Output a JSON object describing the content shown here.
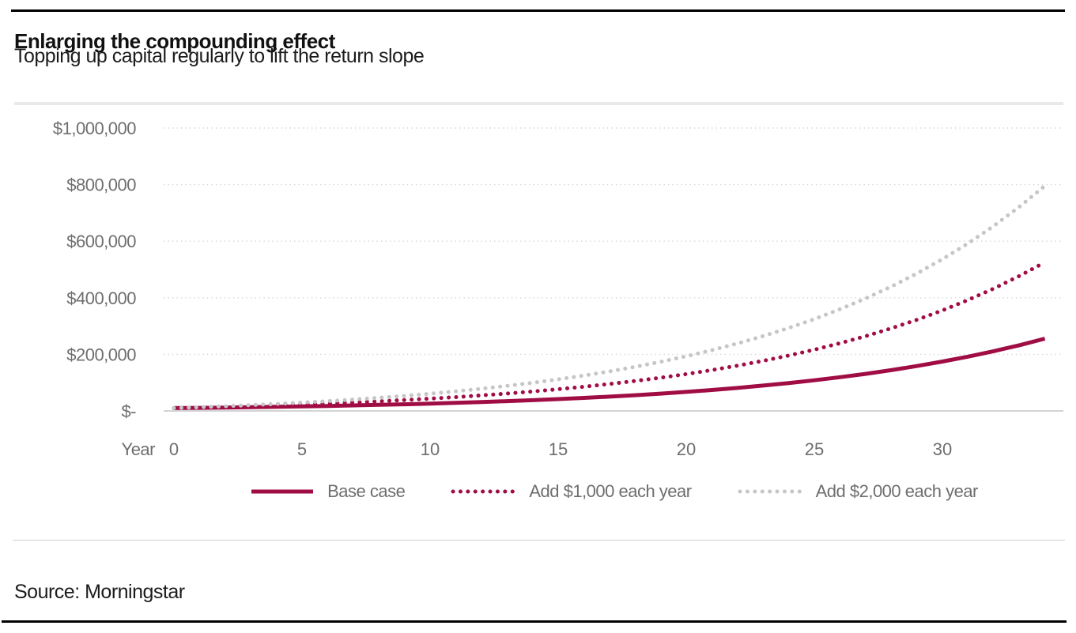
{
  "header": {
    "title": "Enlarging the compounding effect",
    "subtitle": "Topping up capital regularly to lift the return slope"
  },
  "footer": {
    "source": "Source: Morningstar"
  },
  "colors": {
    "maroon": "#a00d45",
    "gray_series": "#c6c6c6",
    "grid": "#d2d2d2",
    "baseline": "#c6c6c6",
    "axis_text": "#6e6e6e",
    "separator": "#e9e9e9",
    "rule": "#000000"
  },
  "legend": {
    "items": [
      {
        "label": "Base case",
        "style": "solid",
        "color": "#a00d45"
      },
      {
        "label": "Add $1,000 each year",
        "style": "dotted",
        "color": "#a00d45"
      },
      {
        "label": "Add $2,000 each year",
        "style": "dotted",
        "color": "#c6c6c6"
      }
    ]
  },
  "chart_data": {
    "type": "line",
    "title": "Enlarging the compounding effect",
    "subtitle": "Topping up capital regularly to lift the return slope",
    "xlabel": "Year",
    "ylabel": "",
    "grid": "horizontal-dotted",
    "legend_position": "bottom",
    "xlim": [
      0,
      34.7
    ],
    "ylim": [
      0,
      1000000
    ],
    "x_tick_values": [
      0,
      5,
      10,
      15,
      20,
      25,
      30
    ],
    "y_tick_values": [
      0,
      200000,
      400000,
      600000,
      800000,
      1000000
    ],
    "y_tick_labels": [
      "$-",
      "$200,000",
      "$400,000",
      "$600,000",
      "$800,000",
      "$1,000,000"
    ],
    "x": [
      0,
      1,
      2,
      3,
      4,
      5,
      6,
      7,
      8,
      9,
      10,
      11,
      12,
      13,
      14,
      15,
      16,
      17,
      18,
      19,
      20,
      21,
      22,
      23,
      24,
      25,
      26,
      27,
      28,
      29,
      30,
      31,
      32,
      33,
      34
    ],
    "series": [
      {
        "name": "Base case",
        "style": "solid",
        "color": "#a00d45",
        "values": [
          10000,
          11000,
          12100,
          13310,
          14641,
          16105,
          17716,
          19487,
          21436,
          23579,
          25937,
          28531,
          31384,
          34523,
          37975,
          41772,
          45950,
          50545,
          55599,
          61159,
          67275,
          74002,
          81403,
          89543,
          98497,
          108347,
          119182,
          131100,
          144210,
          158631,
          174494,
          191943,
          211138,
          232252,
          255477
        ]
      },
      {
        "name": "Add $1,000 each year",
        "style": "dotted",
        "color": "#a00d45",
        "values": [
          10000,
          12100,
          14410,
          16951,
          19746,
          22821,
          26203,
          29923,
          34015,
          38516,
          43468,
          48915,
          54907,
          61498,
          68747,
          76722,
          85495,
          95144,
          105758,
          117434,
          130277,
          144404,
          159946,
          177040,
          195844,
          216529,
          239282,
          264310,
          291841,
          322125,
          355437,
          392081,
          432390,
          476729,
          525501
        ]
      },
      {
        "name": "Add $2,000 each year",
        "style": "dotted",
        "color": "#c6c6c6",
        "values": [
          10000,
          13200,
          16720,
          20592,
          24851,
          29536,
          34691,
          40359,
          46594,
          53454,
          61000,
          69300,
          78430,
          88473,
          99520,
          111672,
          125039,
          139743,
          155917,
          173709,
          193280,
          214805,
          238488,
          264537,
          293191,
          324711,
          359383,
          397520,
          439472,
          485618,
          536380,
          592219,
          653641,
          721207,
          795525
        ]
      }
    ]
  }
}
